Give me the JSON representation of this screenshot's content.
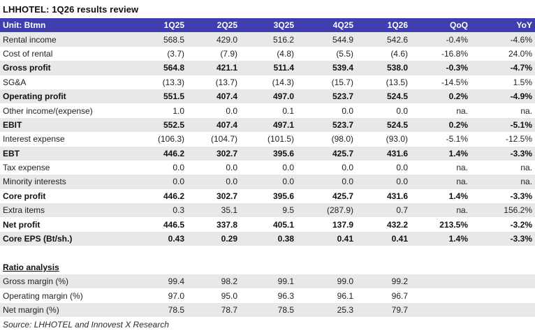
{
  "title": "LHHOTEL: 1Q26 results review",
  "header": [
    "Unit: Btmn",
    "1Q25",
    "2Q25",
    "3Q25",
    "4Q25",
    "1Q26",
    "QoQ",
    "YoY"
  ],
  "rows": [
    {
      "label": "Rental income",
      "values": [
        "568.5",
        "429.0",
        "516.2",
        "544.9",
        "542.6",
        "-0.4%",
        "-4.6%"
      ],
      "bold": false,
      "shaded": true
    },
    {
      "label": "Cost of rental",
      "values": [
        "(3.7)",
        "(7.9)",
        "(4.8)",
        "(5.5)",
        "(4.6)",
        "-16.8%",
        "24.0%"
      ],
      "bold": false,
      "shaded": false
    },
    {
      "label": "Gross profit",
      "values": [
        "564.8",
        "421.1",
        "511.4",
        "539.4",
        "538.0",
        "-0.3%",
        "-4.7%"
      ],
      "bold": true,
      "shaded": true
    },
    {
      "label": "SG&A",
      "values": [
        "(13.3)",
        "(13.7)",
        "(14.3)",
        "(15.7)",
        "(13.5)",
        "-14.5%",
        "1.5%"
      ],
      "bold": false,
      "shaded": false
    },
    {
      "label": "Operating profit",
      "values": [
        "551.5",
        "407.4",
        "497.0",
        "523.7",
        "524.5",
        "0.2%",
        "-4.9%"
      ],
      "bold": true,
      "shaded": true
    },
    {
      "label": "Other income/(expense)",
      "values": [
        "1.0",
        "0.0",
        "0.1",
        "0.0",
        "0.0",
        "na.",
        "na."
      ],
      "bold": false,
      "shaded": false
    },
    {
      "label": "EBIT",
      "values": [
        "552.5",
        "407.4",
        "497.1",
        "523.7",
        "524.5",
        "0.2%",
        "-5.1%"
      ],
      "bold": true,
      "shaded": true
    },
    {
      "label": "Interest expense",
      "values": [
        "(106.3)",
        "(104.7)",
        "(101.5)",
        "(98.0)",
        "(93.0)",
        "-5.1%",
        "-12.5%"
      ],
      "bold": false,
      "shaded": false
    },
    {
      "label": "EBT",
      "values": [
        "446.2",
        "302.7",
        "395.6",
        "425.7",
        "431.6",
        "1.4%",
        "-3.3%"
      ],
      "bold": true,
      "shaded": true
    },
    {
      "label": "Tax expense",
      "values": [
        "0.0",
        "0.0",
        "0.0",
        "0.0",
        "0.0",
        "na.",
        "na."
      ],
      "bold": false,
      "shaded": false
    },
    {
      "label": "Minority interests",
      "values": [
        "0.0",
        "0.0",
        "0.0",
        "0.0",
        "0.0",
        "na.",
        "na."
      ],
      "bold": false,
      "shaded": true
    },
    {
      "label": "Core profit",
      "values": [
        "446.2",
        "302.7",
        "395.6",
        "425.7",
        "431.6",
        "1.4%",
        "-3.3%"
      ],
      "bold": true,
      "shaded": false
    },
    {
      "label": "Extra items",
      "values": [
        "0.3",
        "35.1",
        "9.5",
        "(287.9)",
        "0.7",
        "na.",
        "156.2%"
      ],
      "bold": false,
      "shaded": true
    },
    {
      "label": "Net profit",
      "values": [
        "446.5",
        "337.8",
        "405.1",
        "137.9",
        "432.2",
        "213.5%",
        "-3.2%"
      ],
      "bold": true,
      "shaded": false
    },
    {
      "label": "Core EPS (Bt/sh.)",
      "values": [
        "0.43",
        "0.29",
        "0.38",
        "0.41",
        "0.41",
        "1.4%",
        "-3.3%"
      ],
      "bold": true,
      "shaded": true
    },
    {
      "label": "",
      "values": [
        "",
        "",
        "",
        "",
        "",
        "",
        ""
      ],
      "bold": false,
      "shaded": false
    },
    {
      "label": "Ratio analysis",
      "values": [
        "",
        "",
        "",
        "",
        "",
        "",
        ""
      ],
      "bold": true,
      "shaded": false,
      "section": true
    },
    {
      "label": "Gross margin (%)",
      "values": [
        "99.4",
        "98.2",
        "99.1",
        "99.0",
        "99.2",
        "",
        ""
      ],
      "bold": false,
      "shaded": true
    },
    {
      "label": "Operating margin (%)",
      "values": [
        "97.0",
        "95.0",
        "96.3",
        "96.1",
        "96.7",
        "",
        ""
      ],
      "bold": false,
      "shaded": false
    },
    {
      "label": "Net margin (%)",
      "values": [
        "78.5",
        "78.7",
        "78.5",
        "25.3",
        "79.7",
        "",
        ""
      ],
      "bold": false,
      "shaded": true
    }
  ],
  "source": "Source: LHHOTEL and Innovest X Research"
}
